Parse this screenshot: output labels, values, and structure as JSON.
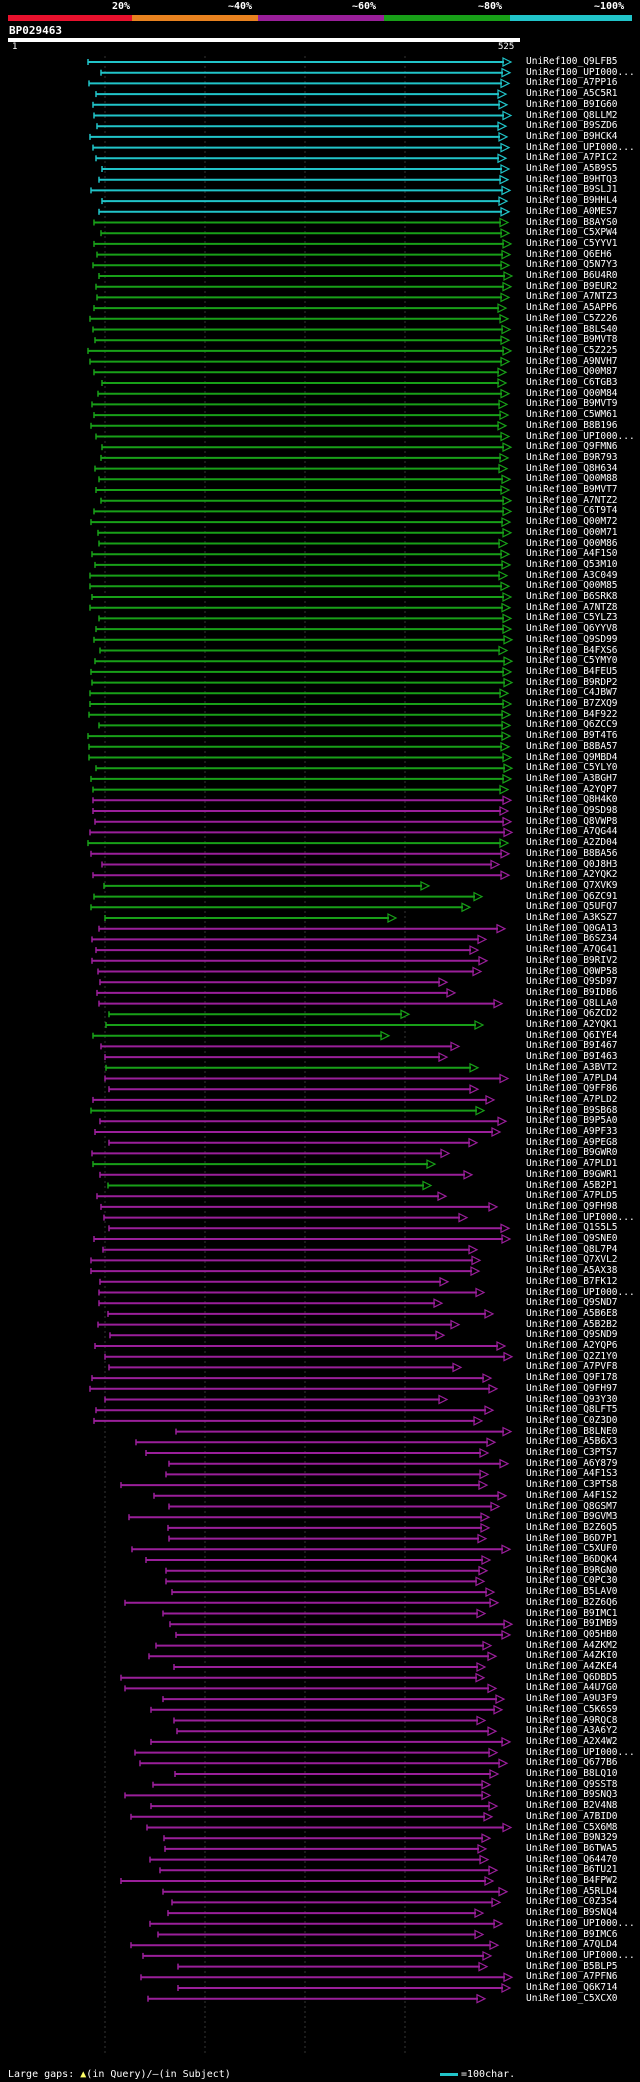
{
  "legend": {
    "labels": [
      "20%",
      "~40%",
      "~60%",
      "~80%",
      "~100%"
    ],
    "colors": [
      "#e8112d",
      "#e8821f",
      "#9a1f9a",
      "#18a018",
      "#21c4c9"
    ]
  },
  "query": {
    "id": "BP029463",
    "start": "1",
    "end": "525"
  },
  "footer": {
    "gaps_text": "Large gaps:",
    "in_query": "(in Query)/",
    "in_subject": "(in Subject)",
    "scale_text": "=100char."
  },
  "hits": [
    {
      "label": "UniRef100_Q9LFB5",
      "c": 4
    },
    {
      "label": "UniRef100_UPI000...",
      "c": 4
    },
    {
      "label": "UniRef100_A7PP16",
      "c": 4
    },
    {
      "label": "UniRef100_A5C5R1",
      "c": 4
    },
    {
      "label": "UniRef100_B9IG60",
      "c": 4
    },
    {
      "label": "UniRef100_Q8LLM2",
      "c": 4
    },
    {
      "label": "UniRef100_B9SZD6",
      "c": 4
    },
    {
      "label": "UniRef100_B9HCK4",
      "c": 4
    },
    {
      "label": "UniRef100_UPI000...",
      "c": 4
    },
    {
      "label": "UniRef100_A7PIC2",
      "c": 4
    },
    {
      "label": "UniRef100_A5B9S5",
      "c": 4
    },
    {
      "label": "UniRef100_B9HTQ3",
      "c": 4
    },
    {
      "label": "UniRef100_B9SLJ1",
      "c": 4
    },
    {
      "label": "UniRef100_B9HHL4",
      "c": 4
    },
    {
      "label": "UniRef100_A0MES7",
      "c": 4
    },
    {
      "label": "UniRef100_B8AYS0",
      "c": 3
    },
    {
      "label": "UniRef100_C5XPW4",
      "c": 3
    },
    {
      "label": "UniRef100_C5YYV1",
      "c": 3
    },
    {
      "label": "UniRef100_Q6EH6",
      "c": 3
    },
    {
      "label": "UniRef100_Q5N7Y3",
      "c": 3
    },
    {
      "label": "UniRef100_B6U4R0",
      "c": 3
    },
    {
      "label": "UniRef100_B9EUR2",
      "c": 3
    },
    {
      "label": "UniRef100_A7NTZ3",
      "c": 3
    },
    {
      "label": "UniRef100_A5APP6",
      "c": 3
    },
    {
      "label": "UniRef100_C5Z226",
      "c": 3
    },
    {
      "label": "UniRef100_B8LS40",
      "c": 3
    },
    {
      "label": "UniRef100_B9MVT8",
      "c": 3
    },
    {
      "label": "UniRef100_C5Z225",
      "c": 3
    },
    {
      "label": "UniRef100_A9NVH7",
      "c": 3
    },
    {
      "label": "UniRef100_Q00M87",
      "c": 3
    },
    {
      "label": "UniRef100_C6TGB3",
      "c": 3
    },
    {
      "label": "UniRef100_Q00M84",
      "c": 3
    },
    {
      "label": "UniRef100_B9MVT9",
      "c": 3
    },
    {
      "label": "UniRef100_C5WM61",
      "c": 3
    },
    {
      "label": "UniRef100_B8B196",
      "c": 3
    },
    {
      "label": "UniRef100_UPI000...",
      "c": 3
    },
    {
      "label": "UniRef100_Q9FMN6",
      "c": 3
    },
    {
      "label": "UniRef100_B9R793",
      "c": 3
    },
    {
      "label": "UniRef100_Q8H634",
      "c": 3
    },
    {
      "label": "UniRef100_Q00M88",
      "c": 3
    },
    {
      "label": "UniRef100_B9MVT7",
      "c": 3
    },
    {
      "label": "UniRef100_A7NTZ2",
      "c": 3
    },
    {
      "label": "UniRef100_C6T9T4",
      "c": 3
    },
    {
      "label": "UniRef100_Q00M72",
      "c": 3
    },
    {
      "label": "UniRef100_Q00M71",
      "c": 3
    },
    {
      "label": "UniRef100_Q00M86",
      "c": 3
    },
    {
      "label": "UniRef100_A4F1S0",
      "c": 3
    },
    {
      "label": "UniRef100_Q53M10",
      "c": 3
    },
    {
      "label": "UniRef100_A3C049",
      "c": 3
    },
    {
      "label": "UniRef100_Q00M85",
      "c": 3
    },
    {
      "label": "UniRef100_B6SRK8",
      "c": 3
    },
    {
      "label": "UniRef100_A7NTZ8",
      "c": 3
    },
    {
      "label": "UniRef100_C5YLZ3",
      "c": 3
    },
    {
      "label": "UniRef100_Q6YYV8",
      "c": 3
    },
    {
      "label": "UniRef100_Q9SD99",
      "c": 3
    },
    {
      "label": "UniRef100_B4FXS6",
      "c": 3
    },
    {
      "label": "UniRef100_C5YMY0",
      "c": 3
    },
    {
      "label": "UniRef100_B4FEU5",
      "c": 3
    },
    {
      "label": "UniRef100_B9RDP2",
      "c": 3
    },
    {
      "label": "UniRef100_C4JBW7",
      "c": 3
    },
    {
      "label": "UniRef100_B7ZXQ9",
      "c": 3
    },
    {
      "label": "UniRef100_B4F922",
      "c": 3
    },
    {
      "label": "UniRef100_Q6ZCC9",
      "c": 3
    },
    {
      "label": "UniRef100_B9T4T6",
      "c": 3
    },
    {
      "label": "UniRef100_B8BA57",
      "c": 3
    },
    {
      "label": "UniRef100_Q9MBD4",
      "c": 3
    },
    {
      "label": "UniRef100_C5YLY0",
      "c": 3
    },
    {
      "label": "UniRef100_A3BGH7",
      "c": 3
    },
    {
      "label": "UniRef100_A2YQP7",
      "c": 3
    },
    {
      "label": "UniRef100_Q8H4K0",
      "c": 2
    },
    {
      "label": "UniRef100_Q9SD98",
      "c": 2
    },
    {
      "label": "UniRef100_Q8VWP8",
      "c": 2
    },
    {
      "label": "UniRef100_A7QG44",
      "c": 2
    },
    {
      "label": "UniRef100_A2ZD04",
      "c": 3
    },
    {
      "label": "UniRef100_B8BA56",
      "c": 2
    },
    {
      "label": "UniRef100_Q0J8H3",
      "c": 2
    },
    {
      "label": "UniRef100_A2YQK2",
      "c": 2
    },
    {
      "label": "UniRef100_Q7XVK9",
      "c": 3
    },
    {
      "label": "UniRef100_Q6ZC91",
      "c": 3
    },
    {
      "label": "UniRef100_Q5UFQ7",
      "c": 3
    },
    {
      "label": "UniRef100_A3KSZ7",
      "c": 3
    },
    {
      "label": "UniRef100_Q0GA13",
      "c": 2
    },
    {
      "label": "UniRef100_B6SZ34",
      "c": 2
    },
    {
      "label": "UniRef100_A7QG41",
      "c": 2
    },
    {
      "label": "UniRef100_B9RIV2",
      "c": 2
    },
    {
      "label": "UniRef100_Q0WP58",
      "c": 2
    },
    {
      "label": "UniRef100_Q9SD97",
      "c": 2
    },
    {
      "label": "UniRef100_B9IDB6",
      "c": 2
    },
    {
      "label": "UniRef100_Q8LLA0",
      "c": 2
    },
    {
      "label": "UniRef100_Q6ZCD2",
      "c": 3
    },
    {
      "label": "UniRef100_A2YQK1",
      "c": 3
    },
    {
      "label": "UniRef100_Q6IYE4",
      "c": 3
    },
    {
      "label": "UniRef100_B9I467",
      "c": 2
    },
    {
      "label": "UniRef100_B9I463",
      "c": 2
    },
    {
      "label": "UniRef100_A3BVT2",
      "c": 3
    },
    {
      "label": "UniRef100_A7PLD4",
      "c": 2
    },
    {
      "label": "UniRef100_Q9FF86",
      "c": 2
    },
    {
      "label": "UniRef100_A7PLD2",
      "c": 2
    },
    {
      "label": "UniRef100_B9SB68",
      "c": 3
    },
    {
      "label": "UniRef100_B9P5A0",
      "c": 2
    },
    {
      "label": "UniRef100_A9PF33",
      "c": 2
    },
    {
      "label": "UniRef100_A9PEG8",
      "c": 2
    },
    {
      "label": "UniRef100_B9GWR0",
      "c": 2
    },
    {
      "label": "UniRef100_A7PLD1",
      "c": 3
    },
    {
      "label": "UniRef100_B9GWR1",
      "c": 2
    },
    {
      "label": "UniRef100_A5B2P1",
      "c": 3
    },
    {
      "label": "UniRef100_A7PLD5",
      "c": 2
    },
    {
      "label": "UniRef100_Q9FH98",
      "c": 2
    },
    {
      "label": "UniRef100_UPI000...",
      "c": 2
    },
    {
      "label": "UniRef100_Q1S5L5",
      "c": 2
    },
    {
      "label": "UniRef100_Q9SNE0",
      "c": 2
    },
    {
      "label": "UniRef100_Q8L7P4",
      "c": 2
    },
    {
      "label": "UniRef100_Q7XVL2",
      "c": 2
    },
    {
      "label": "UniRef100_A5AX38",
      "c": 2
    },
    {
      "label": "UniRef100_B7FK12",
      "c": 2
    },
    {
      "label": "UniRef100_UPI000...",
      "c": 2
    },
    {
      "label": "UniRef100_Q9SND7",
      "c": 2
    },
    {
      "label": "UniRef100_A5B6E8",
      "c": 2
    },
    {
      "label": "UniRef100_A5B2B2",
      "c": 2
    },
    {
      "label": "UniRef100_Q9SND9",
      "c": 2
    },
    {
      "label": "UniRef100_A2YQP6",
      "c": 2
    },
    {
      "label": "UniRef100_Q2Z1Y0",
      "c": 2
    },
    {
      "label": "UniRef100_A7PVF8",
      "c": 2
    },
    {
      "label": "UniRef100_Q9F178",
      "c": 2
    },
    {
      "label": "UniRef100_Q9FH97",
      "c": 2
    },
    {
      "label": "UniRef100_Q93Y30",
      "c": 2
    },
    {
      "label": "UniRef100_Q8LFT5",
      "c": 2
    },
    {
      "label": "UniRef100_C0Z3D0",
      "c": 2
    },
    {
      "label": "UniRef100_B8LNE0",
      "c": 2
    },
    {
      "label": "UniRef100_A5B6X3",
      "c": 2
    },
    {
      "label": "UniRef100_C3PTS7",
      "c": 2
    },
    {
      "label": "UniRef100_A6Y879",
      "c": 2
    },
    {
      "label": "UniRef100_A4F1S3",
      "c": 2
    },
    {
      "label": "UniRef100_C3PTS8",
      "c": 2
    },
    {
      "label": "UniRef100_A4F1S2",
      "c": 2
    },
    {
      "label": "UniRef100_Q8GSM7",
      "c": 2
    },
    {
      "label": "UniRef100_B9GVM3",
      "c": 2
    },
    {
      "label": "UniRef100_B2Z6Q5",
      "c": 2
    },
    {
      "label": "UniRef100_B6D7P1",
      "c": 2
    },
    {
      "label": "UniRef100_C5XUF0",
      "c": 2
    },
    {
      "label": "UniRef100_B6DQK4",
      "c": 2
    },
    {
      "label": "UniRef100_B9RGN0",
      "c": 2
    },
    {
      "label": "UniRef100_C0PC30",
      "c": 2
    },
    {
      "label": "UniRef100_B5LAV0",
      "c": 2
    },
    {
      "label": "UniRef100_B2Z6Q6",
      "c": 2
    },
    {
      "label": "UniRef100_B9IMC1",
      "c": 2
    },
    {
      "label": "UniRef100_B9IMB9",
      "c": 2
    },
    {
      "label": "UniRef100_Q05HB0",
      "c": 2
    },
    {
      "label": "UniRef100_A4ZKM2",
      "c": 2
    },
    {
      "label": "UniRef100_A4ZKI0",
      "c": 2
    },
    {
      "label": "UniRef100_A4ZKE4",
      "c": 2
    },
    {
      "label": "UniRef100_Q6DBD5",
      "c": 2
    },
    {
      "label": "UniRef100_A4U7G0",
      "c": 2
    },
    {
      "label": "UniRef100_A9U3F9",
      "c": 2
    },
    {
      "label": "UniRef100_C5K6S9",
      "c": 2
    },
    {
      "label": "UniRef100_A9RQC8",
      "c": 2
    },
    {
      "label": "UniRef100_A3A6Y2",
      "c": 2
    },
    {
      "label": "UniRef100_A2X4W2",
      "c": 2
    },
    {
      "label": "UniRef100_UPI000...",
      "c": 2
    },
    {
      "label": "UniRef100_Q677B6",
      "c": 2
    },
    {
      "label": "UniRef100_B8LQ10",
      "c": 2
    },
    {
      "label": "UniRef100_Q9SST8",
      "c": 2
    },
    {
      "label": "UniRef100_B9SNQ3",
      "c": 2
    },
    {
      "label": "UniRef100_B2V4N8",
      "c": 2
    },
    {
      "label": "UniRef100_A7BID0",
      "c": 2
    },
    {
      "label": "UniRef100_C5X6M8",
      "c": 2
    },
    {
      "label": "UniRef100_B9N329",
      "c": 2
    },
    {
      "label": "UniRef100_B6TWA5",
      "c": 2
    },
    {
      "label": "UniRef100_Q64470",
      "c": 2
    },
    {
      "label": "UniRef100_B6TU21",
      "c": 2
    },
    {
      "label": "UniRef100_B4FPW2",
      "c": 2
    },
    {
      "label": "UniRef100_A5RLD4",
      "c": 2
    },
    {
      "label": "UniRef100_C0Z3S4",
      "c": 2
    },
    {
      "label": "UniRef100_B9SNQ4",
      "c": 2
    },
    {
      "label": "UniRef100_UPI000...",
      "c": 2
    },
    {
      "label": "UniRef100_B9IMC6",
      "c": 2
    },
    {
      "label": "UniRef100_A7QLD4",
      "c": 2
    },
    {
      "label": "UniRef100_UPI000...",
      "c": 2
    },
    {
      "label": "UniRef100_B5BLP5",
      "c": 2
    },
    {
      "label": "UniRef100_A7PFN6",
      "c": 2
    },
    {
      "label": "UniRef100_Q6K714",
      "c": 2
    },
    {
      "label": "UniRef100_C5XCX0",
      "c": 2
    }
  ]
}
